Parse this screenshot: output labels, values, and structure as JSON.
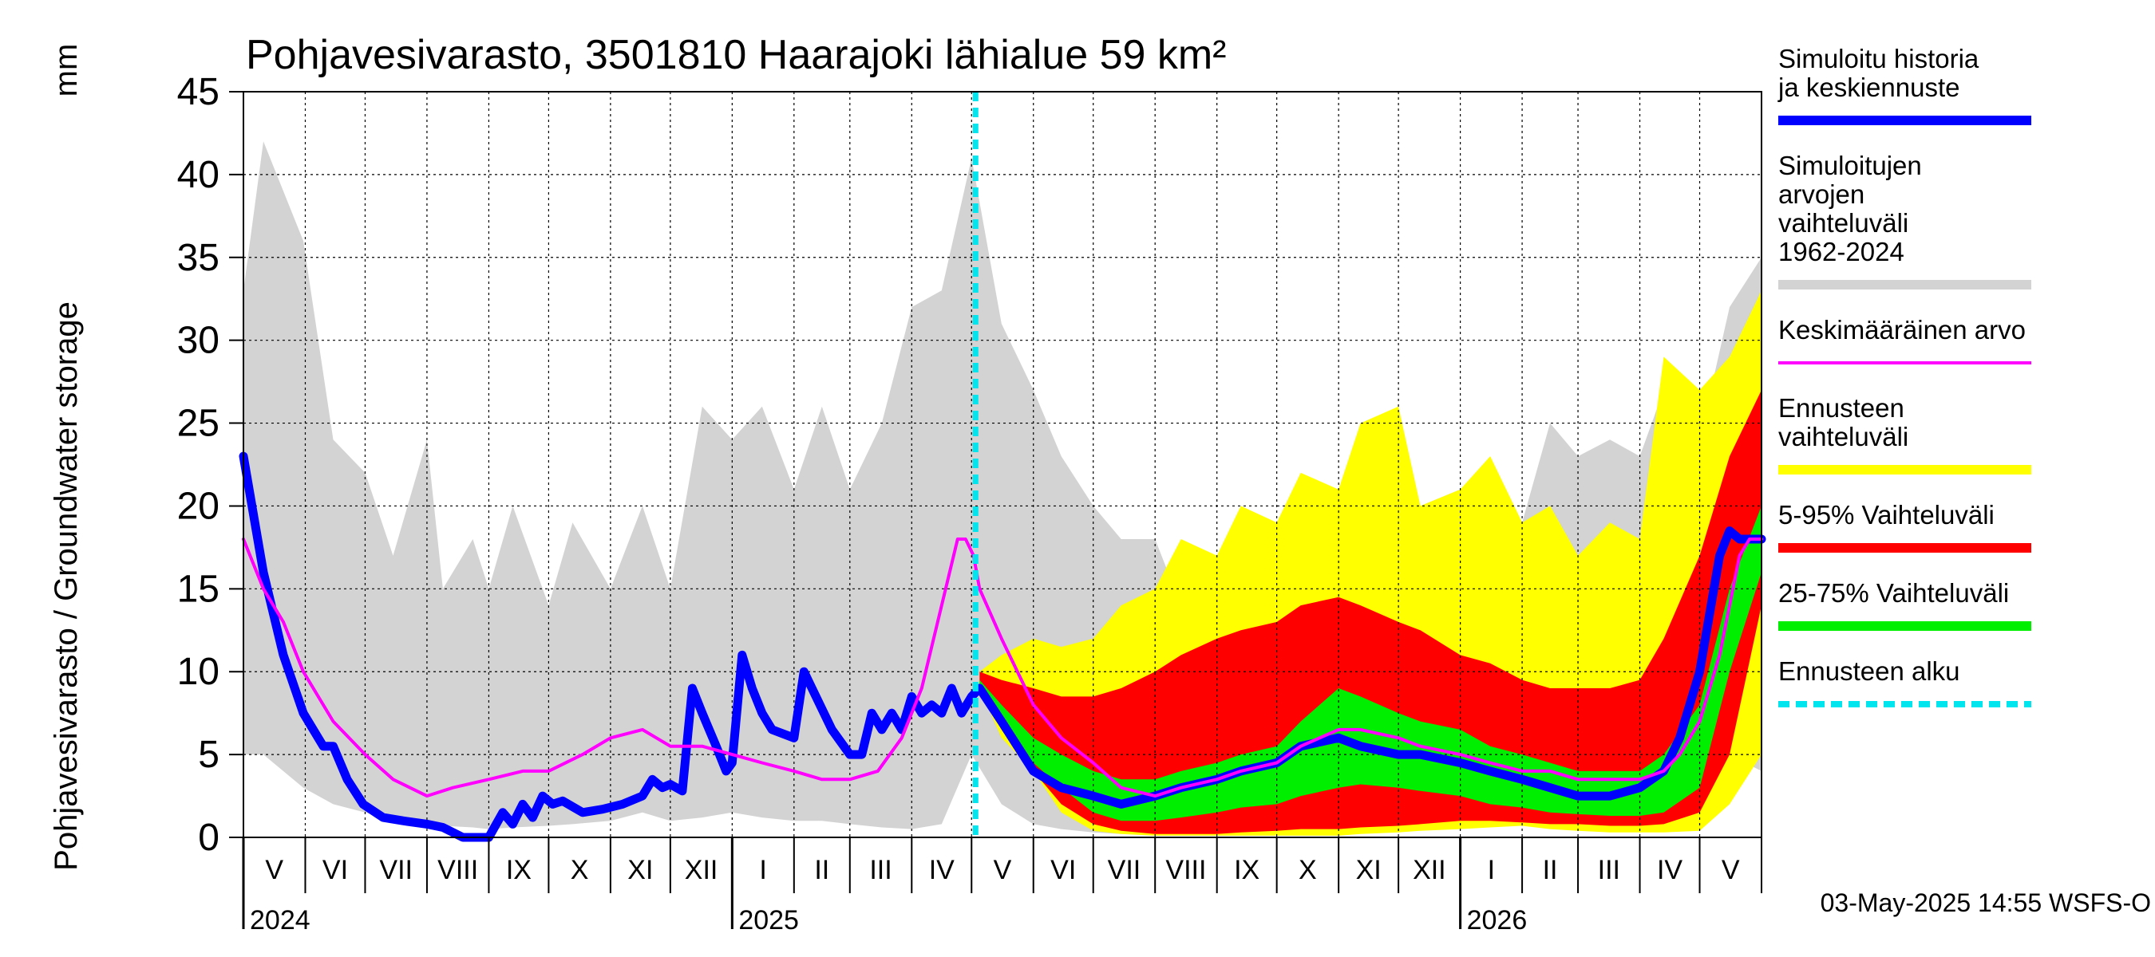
{
  "chart_data": {
    "type": "area",
    "title": "Pohjavesivarasto, 3501810 Haarajoki lähialue 59 km²",
    "ylabel": "Pohjavesivarasto / Groundwater storage",
    "yunit": "mm",
    "ylim": [
      0,
      45
    ],
    "yticks": [
      0,
      5,
      10,
      15,
      20,
      25,
      30,
      35,
      40,
      45
    ],
    "x_start": "2024-05-01",
    "x_end": "2026-05-31",
    "forecast_start": "2025-05-03",
    "months": [
      {
        "label": "V",
        "start": 0
      },
      {
        "label": "VI",
        "start": 31
      },
      {
        "label": "VII",
        "start": 61
      },
      {
        "label": "VIII",
        "start": 92
      },
      {
        "label": "IX",
        "start": 123
      },
      {
        "label": "X",
        "start": 153
      },
      {
        "label": "XI",
        "start": 184
      },
      {
        "label": "XII",
        "start": 214
      },
      {
        "label": "I",
        "start": 245
      },
      {
        "label": "II",
        "start": 276
      },
      {
        "label": "III",
        "start": 304
      },
      {
        "label": "IV",
        "start": 335
      },
      {
        "label": "V",
        "start": 365
      },
      {
        "label": "VI",
        "start": 396
      },
      {
        "label": "VII",
        "start": 426
      },
      {
        "label": "VIII",
        "start": 457
      },
      {
        "label": "IX",
        "start": 488
      },
      {
        "label": "X",
        "start": 518
      },
      {
        "label": "XI",
        "start": 549
      },
      {
        "label": "XII",
        "start": 579
      },
      {
        "label": "I",
        "start": 610
      },
      {
        "label": "II",
        "start": 641
      },
      {
        "label": "III",
        "start": 669
      },
      {
        "label": "IV",
        "start": 700
      },
      {
        "label": "V",
        "start": 730
      }
    ],
    "end_day": 761,
    "years": [
      {
        "label": "2024",
        "start": 0
      },
      {
        "label": "2025",
        "start": 245
      },
      {
        "label": "2026",
        "start": 610
      }
    ],
    "series": [
      {
        "name": "Simuloitujen arvojen vaihteluväli 1962-2024",
        "type": "band",
        "color": "#d3d3d3",
        "days": [
          0,
          10,
          30,
          45,
          61,
          75,
          92,
          100,
          115,
          123,
          135,
          153,
          165,
          184,
          200,
          214,
          230,
          245,
          260,
          276,
          290,
          304,
          320,
          335,
          350,
          365,
          380,
          396,
          410,
          426,
          440,
          457,
          470,
          488,
          500,
          518,
          530,
          549,
          560,
          579,
          590,
          610,
          625,
          641,
          655,
          669,
          685,
          700,
          715,
          730,
          745,
          761
        ],
        "upper": [
          33,
          42,
          36,
          24,
          22,
          17,
          24,
          15,
          18,
          15,
          20,
          14,
          19,
          15,
          20,
          15,
          26,
          24,
          26,
          21,
          26,
          21,
          25,
          32,
          33,
          41,
          31,
          27,
          23,
          20,
          18,
          18,
          14,
          13,
          15,
          17,
          20,
          21,
          18,
          22,
          20,
          21,
          22,
          19,
          25,
          23,
          24,
          23,
          28,
          24,
          32,
          35
        ],
        "lower": [
          5,
          5,
          3,
          2,
          1.5,
          1,
          0.8,
          0.7,
          0.6,
          0.5,
          0.6,
          0.7,
          0.8,
          1,
          1.5,
          1,
          1.2,
          1.5,
          1.2,
          1,
          1,
          0.8,
          0.6,
          0.5,
          0.8,
          5,
          2,
          0.8,
          0.5,
          0.3,
          0.2,
          0.2,
          0.2,
          0.2,
          0.2,
          0.3,
          0.4,
          0.5,
          0.6,
          0.7,
          0.8,
          1,
          1,
          0.8,
          0.7,
          0.6,
          0.6,
          0.6,
          2,
          5,
          5,
          4
        ]
      },
      {
        "name": "Ennusteen vaihteluväli",
        "type": "band",
        "color": "#ffff00",
        "days": [
          369,
          380,
          396,
          410,
          426,
          440,
          457,
          470,
          488,
          500,
          518,
          530,
          549,
          560,
          579,
          590,
          610,
          625,
          641,
          655,
          669,
          685,
          700,
          712,
          730,
          745,
          761
        ],
        "upper": [
          10,
          11,
          12,
          11.5,
          12,
          14,
          15,
          18,
          17,
          20,
          19,
          22,
          21,
          25,
          26,
          20,
          21,
          23,
          19,
          20,
          17,
          19,
          18,
          29,
          27,
          29,
          33
        ],
        "lower": [
          9,
          6,
          4,
          1.5,
          0.4,
          0.2,
          0.1,
          0.1,
          0.1,
          0.1,
          0.1,
          0.1,
          0.1,
          0.2,
          0.3,
          0.4,
          0.5,
          0.6,
          0.7,
          0.5,
          0.4,
          0.3,
          0.3,
          0.3,
          0.4,
          2,
          5
        ]
      },
      {
        "name": "5-95% Vaihteluväli",
        "type": "band",
        "color": "#ff0000",
        "days": [
          369,
          380,
          396,
          410,
          426,
          440,
          457,
          470,
          488,
          500,
          518,
          530,
          549,
          560,
          579,
          590,
          610,
          625,
          641,
          655,
          669,
          685,
          700,
          712,
          730,
          745,
          761
        ],
        "upper": [
          10,
          9.5,
          9,
          8.5,
          8.5,
          9,
          10,
          11,
          12,
          12.5,
          13,
          14,
          14.5,
          14,
          13,
          12.5,
          11,
          10.5,
          9.5,
          9,
          9,
          9,
          9.5,
          12,
          17,
          23,
          27
        ],
        "lower": [
          9,
          6.5,
          4,
          2,
          0.8,
          0.4,
          0.2,
          0.2,
          0.2,
          0.3,
          0.4,
          0.5,
          0.5,
          0.6,
          0.7,
          0.8,
          1,
          1,
          0.9,
          0.8,
          0.8,
          0.7,
          0.7,
          0.8,
          1.5,
          5,
          14
        ]
      },
      {
        "name": "25-75% Vaihteluväli",
        "type": "band",
        "color": "#00ee00",
        "days": [
          369,
          380,
          396,
          410,
          426,
          440,
          457,
          470,
          488,
          500,
          518,
          530,
          549,
          560,
          579,
          590,
          610,
          625,
          641,
          655,
          669,
          685,
          700,
          712,
          730,
          745,
          761
        ],
        "upper": [
          9.5,
          8,
          6,
          5,
          4,
          3.5,
          3.5,
          4,
          4.5,
          5,
          5.5,
          7,
          9,
          8.5,
          7.5,
          7,
          6.5,
          5.5,
          5,
          4.5,
          4,
          4,
          4,
          5,
          8,
          15,
          20
        ],
        "lower": [
          9,
          7,
          4.5,
          3,
          1.5,
          1,
          1,
          1.2,
          1.5,
          1.8,
          2,
          2.5,
          3,
          3.2,
          3,
          2.8,
          2.5,
          2,
          1.8,
          1.5,
          1.4,
          1.3,
          1.3,
          1.5,
          3,
          10,
          16
        ]
      },
      {
        "name": "Simuloitu historia ja keskiennuste",
        "type": "line",
        "color": "#0000ff",
        "days": [
          0,
          10,
          20,
          30,
          40,
          45,
          52,
          60,
          70,
          80,
          92,
          100,
          110,
          115,
          123,
          130,
          135,
          140,
          145,
          150,
          155,
          160,
          170,
          180,
          190,
          200,
          205,
          210,
          214,
          220,
          225,
          230,
          237,
          242,
          245,
          250,
          255,
          260,
          265,
          276,
          281,
          287,
          295,
          304,
          310,
          315,
          320,
          325,
          330,
          335,
          340,
          345,
          350,
          355,
          360,
          365,
          369,
          380,
          396,
          410,
          426,
          440,
          457,
          470,
          488,
          500,
          518,
          530,
          549,
          560,
          579,
          590,
          610,
          625,
          641,
          655,
          669,
          685,
          700,
          712,
          720,
          730,
          740,
          745,
          750,
          758,
          761
        ],
        "values": [
          23,
          16,
          11,
          7.5,
          5.5,
          5.5,
          3.5,
          2,
          1.2,
          1,
          0.8,
          0.6,
          0,
          0,
          0,
          1.5,
          0.8,
          2,
          1.2,
          2.5,
          2,
          2.2,
          1.5,
          1.7,
          2,
          2.5,
          3.5,
          3,
          3.2,
          2.8,
          9,
          7.5,
          5.5,
          4,
          4.5,
          11,
          9,
          7.5,
          6.5,
          6,
          10,
          8.5,
          6.5,
          5,
          5,
          7.5,
          6.5,
          7.5,
          6.5,
          8.5,
          7.5,
          8,
          7.5,
          9,
          7.5,
          8.5,
          9,
          7,
          4,
          3,
          2.5,
          2,
          2.5,
          3,
          3.5,
          4,
          4.5,
          5.5,
          6,
          5.5,
          5,
          5,
          4.5,
          4,
          3.5,
          3,
          2.5,
          2.5,
          3,
          4,
          6,
          10,
          17,
          18.5,
          18,
          18,
          18
        ]
      },
      {
        "name": "Keskimääräinen arvo",
        "type": "line",
        "color": "#ff00ff",
        "days": [
          0,
          10,
          20,
          30,
          45,
          61,
          75,
          92,
          105,
          123,
          140,
          153,
          170,
          184,
          200,
          214,
          230,
          245,
          260,
          276,
          290,
          304,
          318,
          330,
          340,
          350,
          358,
          362,
          366,
          369,
          380,
          396,
          410,
          426,
          440,
          457,
          470,
          488,
          500,
          518,
          530,
          549,
          560,
          579,
          590,
          610,
          625,
          641,
          655,
          669,
          685,
          700,
          712,
          720,
          730,
          740,
          745,
          750,
          755,
          761
        ],
        "values": [
          18,
          15,
          13,
          10,
          7,
          5,
          3.5,
          2.5,
          3,
          3.5,
          4,
          4,
          5,
          6,
          6.5,
          5.5,
          5.5,
          5,
          4.5,
          4,
          3.5,
          3.5,
          4,
          6,
          9,
          14,
          18,
          18,
          17,
          15,
          12,
          8,
          6,
          4.5,
          3,
          2.5,
          3,
          3.5,
          4,
          4.5,
          5.5,
          6.5,
          6.5,
          6,
          5.5,
          5,
          4.5,
          4,
          4,
          3.5,
          3.5,
          3.5,
          4,
          5,
          7,
          11,
          14,
          17,
          18,
          18
        ]
      },
      {
        "name": "Ennusteen alku",
        "type": "vline",
        "color": "#00e5ee",
        "day": 367
      }
    ]
  },
  "legend": [
    {
      "label": "Simuloitu historia ja keskiennuste",
      "color": "#0000ff",
      "style": "line"
    },
    {
      "label": "Simuloitujen arvojen vaihteluväli 1962-2024",
      "color": "#d3d3d3",
      "style": "line"
    },
    {
      "label": "Keskimääräinen arvo",
      "color": "#ff00ff",
      "style": "thin"
    },
    {
      "label": "Ennusteen vaihteluväli",
      "color": "#ffff00",
      "style": "line"
    },
    {
      "label": "5-95% Vaihteluväli",
      "color": "#ff0000",
      "style": "line"
    },
    {
      "label": "25-75% Vaihteluväli",
      "color": "#00ee00",
      "style": "line"
    },
    {
      "label": "Ennusteen alku",
      "color": "#00e5ee",
      "style": "dash"
    }
  ],
  "footer": "03-May-2025 14:55 WSFS-O"
}
